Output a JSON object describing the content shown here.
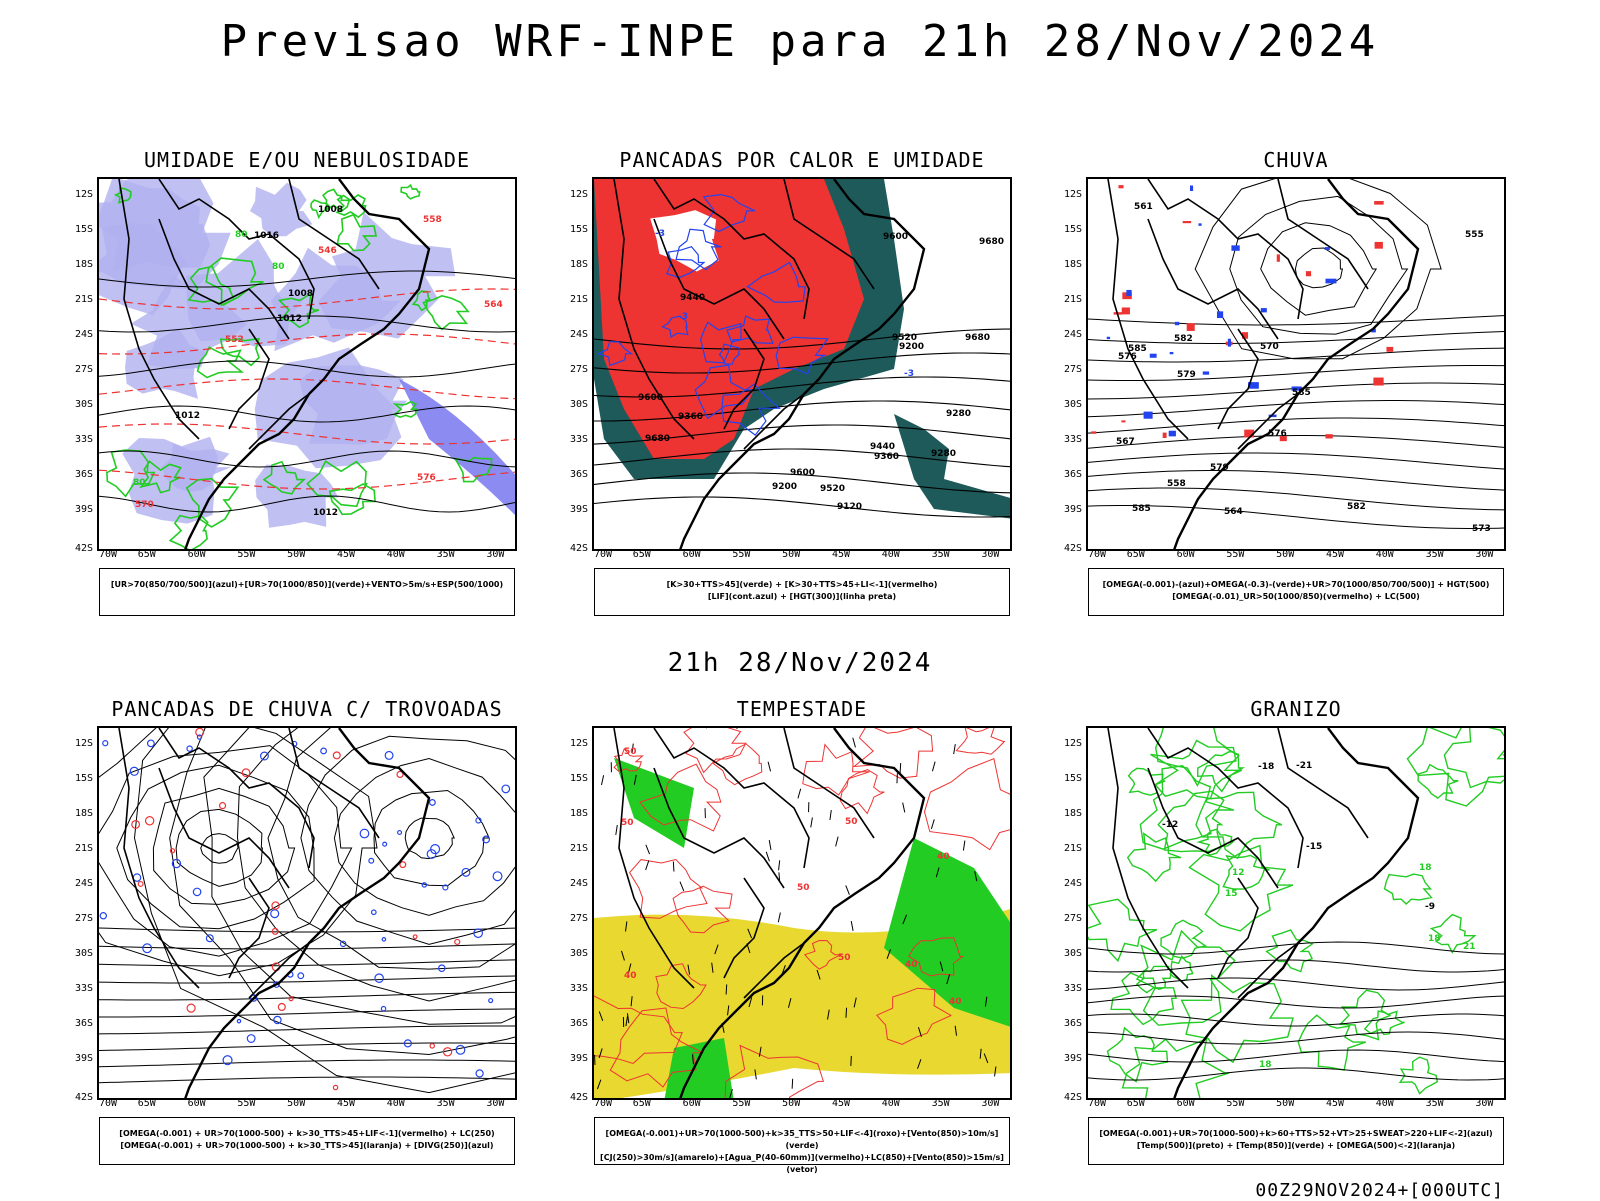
{
  "title": "Previsao WRF-INPE  para 21h 28/Nov/2024",
  "mid_title": "21h 28/Nov/2024",
  "footer": "00Z29NOV2024+[000UTC]",
  "axes": {
    "lat_labels": [
      "12S",
      "15S",
      "18S",
      "21S",
      "24S",
      "27S",
      "30S",
      "33S",
      "36S",
      "39S",
      "42S"
    ],
    "lon_labels": [
      "70W",
      "65W",
      "60W",
      "55W",
      "50W",
      "45W",
      "40W",
      "35W",
      "30W"
    ]
  },
  "colors": {
    "blue_shade": "#b0b0f0",
    "green": "#22cc22",
    "red": "#ee3333",
    "teal": "#1e5a5a",
    "yellow": "#e8d830",
    "blue": "#2244ee"
  },
  "panels": [
    {
      "title": "UMIDADE E/OU NEBULOSIDADE",
      "legend": [
        "[UR>70(850/700/500)](azul)+[UR>70(1000/850)](verde)+VENTO>5m/s+ESP(500/1000)"
      ],
      "labels": [
        "1008",
        "1012",
        "1012",
        "1016",
        "1008",
        "1012",
        "570",
        "576",
        "564",
        "558",
        "552",
        "546",
        "80",
        "80",
        "80"
      ]
    },
    {
      "title": "PANCADAS POR CALOR E UMIDADE",
      "legend": [
        "[K>30+TTS>45](verde) + [K>30+TTS>45+LI<-1](vermelho)",
        "[LIF](cont.azul) + [HGT(300)](linha preta)"
      ],
      "labels": [
        "9680",
        "9680",
        "9680",
        "9600",
        "9600",
        "9520",
        "9440",
        "9360",
        "9280",
        "9200",
        "9120",
        "9600",
        "9520",
        "9440",
        "9360",
        "9280",
        "9200",
        "-3",
        "-3",
        "-3"
      ]
    },
    {
      "title": "CHUVA",
      "legend": [
        "[OMEGA(-0.001)-(azul)+OMEGA(-0.3)-(verde)+UR>70(1000/850/700/500)] + HGT(500)",
        "[OMEGA(-0.01)_UR>50(1000/850)(vermelho) + LC(500)"
      ],
      "labels": [
        "585",
        "585",
        "582",
        "579",
        "576",
        "573",
        "570",
        "567",
        "564",
        "561",
        "558",
        "555",
        "585",
        "582",
        "579",
        "576"
      ]
    },
    {
      "title": "PANCADAS DE CHUVA C/ TROVOADAS",
      "legend": [
        "[OMEGA(-0.001) + UR>70(1000-500) + k>30_TTS>45+LIF<-1](vermelho) + LC(250)",
        "[OMEGA(-0.001) + UR>70(1000-500) + k>30_TTS>45](laranja) + [DIVG(250)](azul)"
      ],
      "labels": []
    },
    {
      "title": "TEMPESTADE",
      "legend": [
        "[OMEGA(-0.001)+UR>70(1000-500)+k>35_TTS>50+LIF<-4](roxo)+[Vento(850)>10m/s](verde)",
        "[CJ(250)>30m/s](amarelo)+[Agua_P(40-60mm)](vermelho)+LC(850)+[Vento(850)>15m/s](vetor)"
      ],
      "labels": [
        "50",
        "40",
        "50",
        "40",
        "50",
        "40",
        "50",
        "40",
        "50"
      ]
    },
    {
      "title": "GRANIZO",
      "legend": [
        "[OMEGA(-0.001)+UR>70(1000-500)+k>60+TTS>52+VT>25+SWEAT>220+LIF<-2](azul)",
        "[Temp(500)](preto) + [Temp(850)](verde) + [OMEGA(500)<-2](laranja)"
      ],
      "labels": [
        "18",
        "18",
        "18",
        "21",
        "15",
        "12",
        "-18",
        "-15",
        "-12",
        "-21",
        "-9"
      ]
    }
  ]
}
